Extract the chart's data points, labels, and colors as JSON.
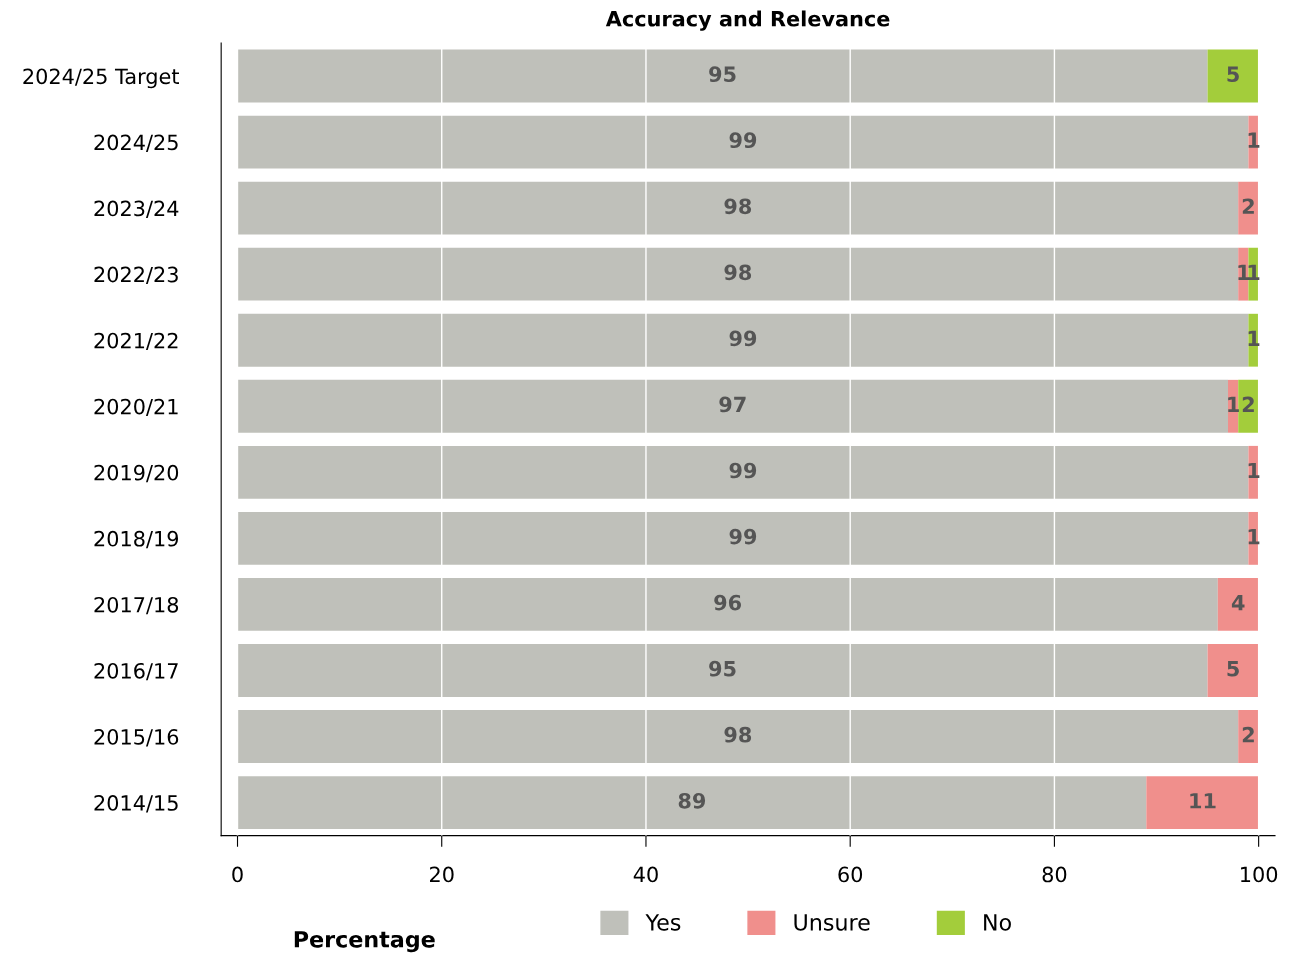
{
  "chart_data": {
    "type": "bar",
    "title": "Accuracy and Relevance",
    "xlabel": "Percentage",
    "orientation": "horizontal",
    "stacked": true,
    "categories": [
      "2024/25 Target",
      "2024/25",
      "2023/24",
      "2022/23",
      "2021/22",
      "2020/21",
      "2019/20",
      "2018/19",
      "2017/18",
      "2016/17",
      "2015/16",
      "2014/15"
    ],
    "series": [
      {
        "name": "Yes",
        "color": "#bfc0ba",
        "values": [
          95,
          99,
          98,
          98,
          99,
          97,
          99,
          99,
          96,
          95,
          98,
          89
        ]
      },
      {
        "name": "Unsure",
        "color": "#f08f8c",
        "values": [
          null,
          1,
          2,
          1,
          null,
          1,
          1,
          1,
          4,
          5,
          2,
          11
        ]
      },
      {
        "name": "No",
        "color": "#a3cd3b",
        "values": [
          5,
          null,
          null,
          1,
          1,
          2,
          null,
          null,
          null,
          null,
          null,
          null
        ]
      }
    ],
    "xlim": [
      0,
      100
    ],
    "xticks": [
      0,
      20,
      40,
      60,
      80,
      100
    ],
    "grid": "x",
    "legend": "bottom",
    "data_labels": true
  }
}
